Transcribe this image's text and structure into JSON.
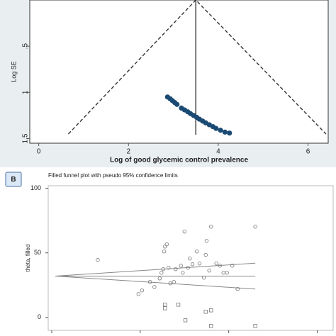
{
  "chart_data": [
    {
      "type": "scatter",
      "xlabel": "Log of good glycemic control prevalence",
      "ylabel": "Log SE",
      "xlim": [
        -0.2,
        6.45
      ],
      "ylim": [
        0,
        1.55
      ],
      "y_reversed": true,
      "xticks": [
        0,
        2,
        4,
        6
      ],
      "yticks": [
        {
          "value": 0.5,
          "label": ".5"
        },
        1,
        1.5
      ],
      "series": [
        {
          "mode": "line",
          "dash": true,
          "color": "#333333",
          "x": [
            0.66,
            3.5,
            6.4
          ],
          "values": [
            1.45,
            0,
            1.45
          ]
        },
        {
          "mode": "line",
          "dash": false,
          "color": "#333333",
          "x": [
            3.5,
            3.5
          ],
          "values": [
            0,
            1.46
          ]
        },
        {
          "mode": "markers",
          "marker": "dot",
          "color": "#1a4a73",
          "x": [
            2.87,
            2.93,
            2.98,
            3.03,
            3.08,
            3.18,
            3.25,
            3.32,
            3.38,
            3.45,
            3.52,
            3.58,
            3.65,
            3.72,
            3.8,
            3.88,
            3.95,
            4.05,
            4.15,
            4.25
          ],
          "values": [
            1.05,
            1.07,
            1.09,
            1.11,
            1.13,
            1.17,
            1.19,
            1.21,
            1.23,
            1.25,
            1.27,
            1.29,
            1.31,
            1.33,
            1.35,
            1.37,
            1.39,
            1.41,
            1.43,
            1.44
          ]
        }
      ]
    },
    {
      "type": "scatter",
      "panel_label": "B",
      "title": "Filled funnel plot with pseudo 95% confidence limits",
      "ylabel": "theta, filled",
      "xlim": [
        -0.04,
        3.18
      ],
      "ylim": [
        -10,
        102
      ],
      "y_reversed": false,
      "xticks": [
        0,
        1,
        2,
        3
      ],
      "xtick_labels": false,
      "yticks": [
        0,
        50,
        100
      ],
      "series": [
        {
          "mode": "line",
          "dash": false,
          "color": "#888888",
          "x": [
            0.04,
            2.3
          ],
          "values": [
            32,
            32
          ]
        },
        {
          "mode": "line",
          "dash": false,
          "color": "#888888",
          "x": [
            0.04,
            2.3
          ],
          "values": [
            32,
            42
          ]
        },
        {
          "mode": "line",
          "dash": false,
          "color": "#888888",
          "x": [
            0.04,
            2.3
          ],
          "values": [
            32,
            22
          ]
        },
        {
          "mode": "markers",
          "marker": "circle",
          "color": "#777777",
          "x": [
            0.52,
            0.98,
            1.02,
            1.11,
            1.16,
            1.22,
            1.24,
            1.26,
            1.27,
            1.28,
            1.3,
            1.32,
            1.34,
            1.38,
            1.4,
            1.46,
            1.48,
            1.5,
            1.54,
            1.56,
            1.59,
            1.64,
            1.67,
            1.72,
            1.74,
            1.75,
            1.78,
            1.8,
            1.86,
            1.9,
            1.94,
            1.98,
            2.04,
            2.1,
            2.3
          ],
          "values": [
            44.5,
            18.1,
            20.9,
            27.5,
            23.6,
            30.2,
            34.6,
            37.4,
            51.1,
            54.9,
            56.6,
            38.5,
            26.4,
            27.5,
            37.4,
            40.1,
            34.6,
            66.5,
            38.5,
            45.6,
            41.2,
            51.1,
            41.8,
            30.8,
            48.4,
            59.3,
            36.3,
            70.3,
            41.8,
            40.1,
            34.6,
            34.6,
            40.1,
            22.0,
            70.3
          ]
        },
        {
          "mode": "markers",
          "marker": "square",
          "color": "#777777",
          "x": [
            1.28,
            1.28,
            1.43,
            1.51,
            1.74,
            1.8,
            1.8,
            2.3
          ],
          "values": [
            9.9,
            7.1,
            9.9,
            -2.2,
            4.4,
            5.5,
            -6.6,
            -6.6
          ]
        }
      ]
    }
  ]
}
